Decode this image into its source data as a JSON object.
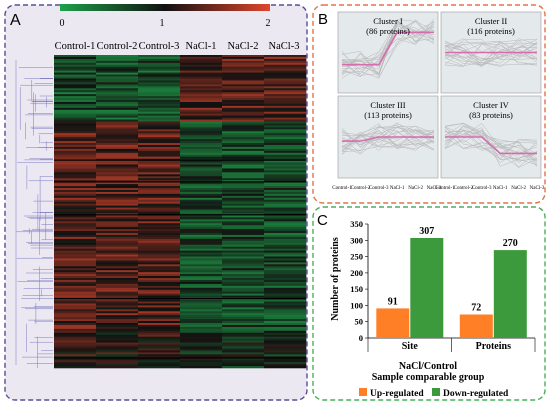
{
  "panel_a": {
    "label": "A",
    "scale_ticks": [
      "0",
      "1",
      "2"
    ],
    "columns": [
      "Control-1",
      "Control-2",
      "Control-3",
      "NaCl-1",
      "NaCl-2",
      "NaCl-3"
    ],
    "colors": {
      "low": "#1fa04a",
      "mid": "#111111",
      "high": "#e0462e",
      "border": "#5b4b9a",
      "panel_bg": "#ece8f2"
    }
  },
  "panel_b": {
    "label": "B",
    "clusters": [
      {
        "title": "Cluster I",
        "count": "(86 proteins)"
      },
      {
        "title": "Cluster II",
        "count": "(116 proteins)"
      },
      {
        "title": "Cluster III",
        "count": "(113 proteins)"
      },
      {
        "title": "Cluster IV",
        "count": "(83 proteins)"
      }
    ],
    "x_labels": [
      "Control-1",
      "Control-2",
      "Control-3",
      "NaCl-1",
      "NaCl-2",
      "NaCl-3"
    ],
    "colors": {
      "border": "#e0734a",
      "trace": "#b9b9b9",
      "mean": "#d66bb0"
    }
  },
  "panel_c": {
    "label": "C",
    "legend": [
      {
        "name": "Up-regulated",
        "color": "#ff7f27"
      },
      {
        "name": "Down-regulated",
        "color": "#3c9a3c"
      }
    ],
    "colors": {
      "border": "#4aaf5a"
    }
  },
  "chart_data": [
    {
      "type": "bar",
      "categories": [
        "Site",
        "Proteins"
      ],
      "series": [
        {
          "name": "Up-regulated",
          "values": [
            91,
            72
          ]
        },
        {
          "name": "Down-regulated",
          "values": [
            307,
            270
          ]
        }
      ],
      "ylabel": "Number of proteins",
      "xlabel": "NaCl/Control\nSample comparable group",
      "xlabel_lines": [
        "NaCl/Control",
        "Sample comparable group"
      ],
      "yticks": [
        "0",
        "50",
        "100",
        "150",
        "200",
        "250",
        "300",
        "350"
      ],
      "ylim": [
        0,
        350
      ],
      "legend_position": "bottom",
      "grid": false
    },
    {
      "type": "line",
      "panel": "B",
      "description_free": true,
      "x": [
        "Control-1",
        "Control-2",
        "Control-3",
        "NaCl-1",
        "NaCl-2",
        "NaCl-3"
      ],
      "series": [
        {
          "cluster": "Cluster I",
          "mean": [
            0.35,
            0.35,
            0.35,
            0.75,
            0.75,
            0.75
          ]
        },
        {
          "cluster": "Cluster II",
          "mean": [
            0.5,
            0.5,
            0.5,
            0.5,
            0.5,
            0.5
          ]
        },
        {
          "cluster": "Cluster III",
          "mean": [
            0.45,
            0.45,
            0.5,
            0.5,
            0.5,
            0.5
          ]
        },
        {
          "cluster": "Cluster IV",
          "mean": [
            0.5,
            0.5,
            0.5,
            0.3,
            0.3,
            0.3
          ]
        }
      ]
    }
  ]
}
